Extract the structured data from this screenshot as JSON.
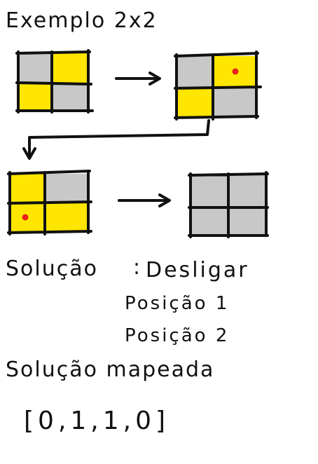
{
  "title": "Exemplo 2x2",
  "colors": {
    "on": "#ffe600",
    "off": "#c8c8c8",
    "stroke": "#111111",
    "dot": "#e8211c"
  },
  "grids": [
    {
      "name": "grid-step-1",
      "cells": [
        "off",
        "on",
        "on",
        "off"
      ],
      "dot": null
    },
    {
      "name": "grid-step-2",
      "cells": [
        "off",
        "on",
        "on",
        "off"
      ],
      "dot": 1
    },
    {
      "name": "grid-step-3",
      "cells": [
        "on",
        "off",
        "on",
        "on"
      ],
      "dot": 2
    },
    {
      "name": "grid-step-4",
      "cells": [
        "off",
        "off",
        "off",
        "off"
      ],
      "dot": null
    }
  ],
  "solution": {
    "label": "Solução",
    "colon": ":",
    "action": "Desligar",
    "positions": [
      "Posição 1",
      "Posição 2"
    ]
  },
  "mapped": {
    "label": "Solução mapeada",
    "vector": "[0,1,1,0]"
  }
}
